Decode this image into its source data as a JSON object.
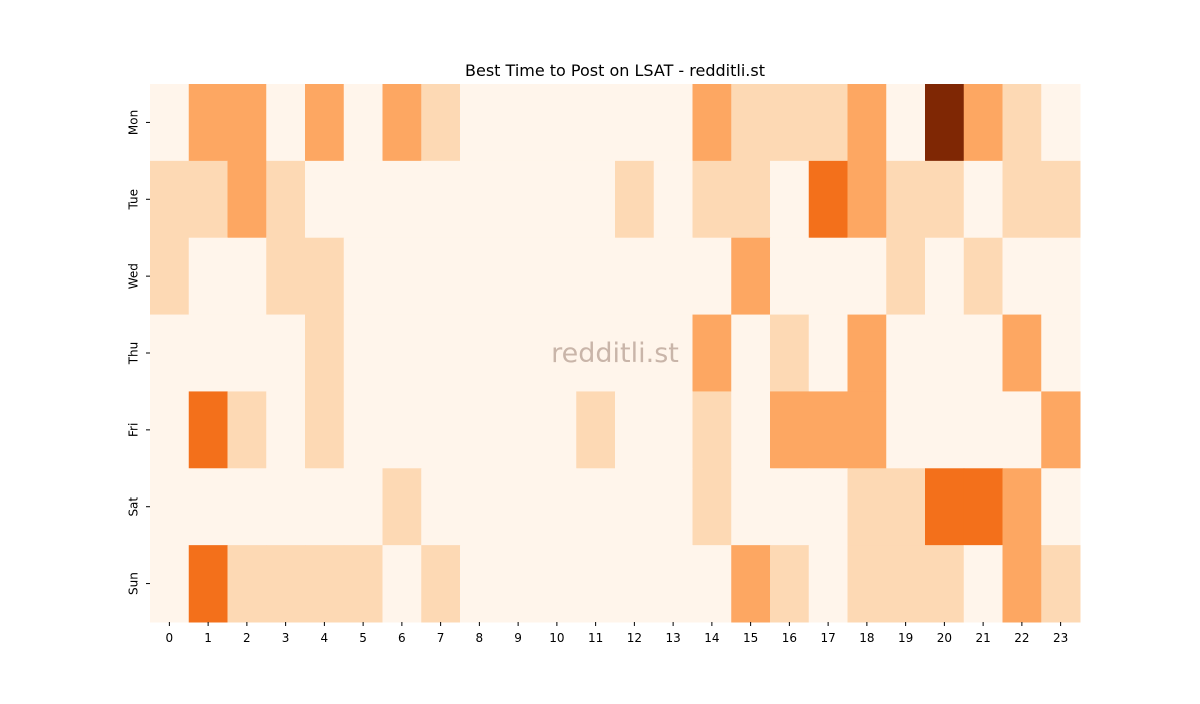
{
  "chart_data": {
    "type": "heatmap",
    "title": "Best Time to Post on LSAT - redditli.st",
    "watermark": "redditli.st",
    "xlabel": "",
    "ylabel": "",
    "x_categories": [
      "0",
      "1",
      "2",
      "3",
      "4",
      "5",
      "6",
      "7",
      "8",
      "9",
      "10",
      "11",
      "12",
      "13",
      "14",
      "15",
      "16",
      "17",
      "18",
      "19",
      "20",
      "21",
      "22",
      "23"
    ],
    "y_categories": [
      "Mon",
      "Tue",
      "Wed",
      "Thu",
      "Fri",
      "Sat",
      "Sun"
    ],
    "value_scale": "relative level 0-4 (estimated from color intensity)",
    "colormap": [
      "#fff5eb",
      "#fdd9b4",
      "#fda762",
      "#f3701b",
      "#7f2704"
    ],
    "values": [
      [
        0,
        2,
        2,
        0,
        2,
        0,
        2,
        1,
        0,
        0,
        0,
        0,
        0,
        0,
        2,
        1,
        1,
        1,
        2,
        0,
        4,
        2,
        1,
        0
      ],
      [
        1,
        1,
        2,
        1,
        0,
        0,
        0,
        0,
        0,
        0,
        0,
        0,
        1,
        0,
        1,
        1,
        0,
        3,
        2,
        1,
        1,
        0,
        1,
        1
      ],
      [
        1,
        0,
        0,
        1,
        1,
        0,
        0,
        0,
        0,
        0,
        0,
        0,
        0,
        0,
        0,
        2,
        0,
        0,
        0,
        1,
        0,
        1,
        0,
        0
      ],
      [
        0,
        0,
        0,
        0,
        1,
        0,
        0,
        0,
        0,
        0,
        0,
        0,
        0,
        0,
        2,
        0,
        1,
        0,
        2,
        0,
        0,
        0,
        2,
        0
      ],
      [
        0,
        3,
        1,
        0,
        1,
        0,
        0,
        0,
        0,
        0,
        0,
        1,
        0,
        0,
        1,
        0,
        2,
        2,
        2,
        0,
        0,
        0,
        0,
        2
      ],
      [
        0,
        0,
        0,
        0,
        0,
        0,
        1,
        0,
        0,
        0,
        0,
        0,
        0,
        0,
        1,
        0,
        0,
        0,
        1,
        1,
        3,
        3,
        2,
        0
      ],
      [
        0,
        3,
        1,
        1,
        1,
        1,
        0,
        1,
        0,
        0,
        0,
        0,
        0,
        0,
        0,
        2,
        1,
        0,
        1,
        1,
        1,
        0,
        2,
        1
      ]
    ],
    "grid": false,
    "legend": "none"
  }
}
